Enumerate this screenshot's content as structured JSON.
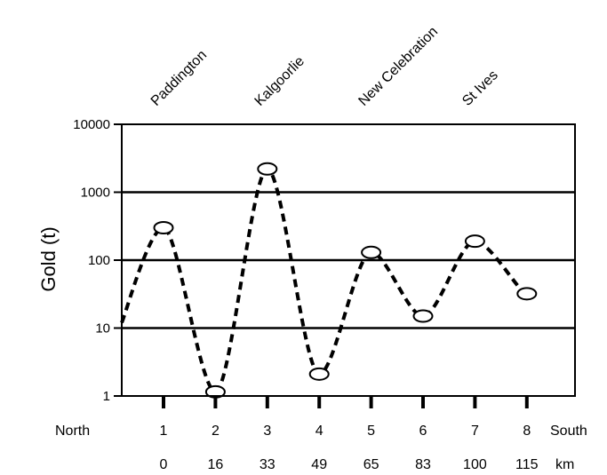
{
  "chart_data": {
    "type": "line",
    "ylabel": "Gold (t)",
    "y_scale": "log",
    "ylim": [
      1,
      10000
    ],
    "y_ticks": [
      1,
      10,
      100,
      1000,
      10000
    ],
    "y_tick_labels": [
      "1",
      "10",
      "100",
      "1000",
      "10000"
    ],
    "grid": "horizontal",
    "x_ticks": [
      "1",
      "2",
      "3",
      "4",
      "5",
      "6",
      "7",
      "8"
    ],
    "x_left_label": "North",
    "x_right_label": "South",
    "distance_labels": [
      "0",
      "16",
      "33",
      "49",
      "65",
      "83",
      "100",
      "115"
    ],
    "distance_unit": "km",
    "site_labels": [
      {
        "label": "Paddington",
        "at": 1
      },
      {
        "label": "Kalgoorlie",
        "at": 3
      },
      {
        "label": "New Celebration",
        "at": 5
      },
      {
        "label": "St Ives",
        "at": 7
      }
    ],
    "series": [
      {
        "x": [
          1,
          2,
          3,
          4,
          5,
          6,
          7,
          8
        ],
        "values": [
          300,
          1.15,
          2200,
          2.1,
          130,
          15,
          190,
          32
        ],
        "line_start_value": 12,
        "line_style": "dashed",
        "marker": "open-ellipse"
      }
    ]
  }
}
